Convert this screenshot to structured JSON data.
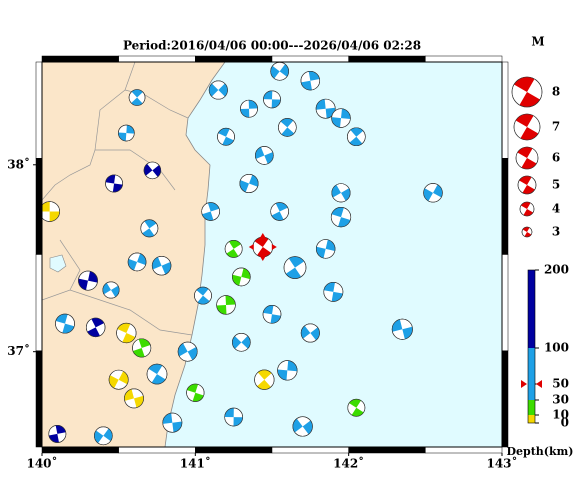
{
  "title": "Period:2016/04/06 00:00---2026/04/06 02:28",
  "xlim": [
    140,
    143
  ],
  "ylim": [
    36.49,
    38.55
  ],
  "xticks": [
    {
      "value": 140,
      "label": "140˚"
    },
    {
      "value": 141,
      "label": "141˚"
    },
    {
      "value": 142,
      "label": "142˚"
    },
    {
      "value": 143,
      "label": "143˚"
    }
  ],
  "yticks": [
    {
      "value": 37,
      "label": "37˚"
    },
    {
      "value": 38,
      "label": "38˚"
    }
  ],
  "magnitude_legend": {
    "title": "M",
    "mags": [
      8,
      7,
      6,
      5,
      4,
      3
    ]
  },
  "depth_scale": {
    "title": "Depth(km)",
    "ticks": [
      200,
      100,
      50,
      30,
      10,
      0
    ]
  },
  "latest": {
    "lon": 141.44,
    "lat": 37.56,
    "depth": 50,
    "mag": 5.5
  },
  "events": [
    {
      "lon": 140.05,
      "lat": 37.75,
      "depth": 8,
      "mag": 5.5
    },
    {
      "lon": 140.62,
      "lat": 38.36,
      "depth": 60,
      "mag": 4.5
    },
    {
      "lon": 140.55,
      "lat": 38.17,
      "depth": 60,
      "mag": 4.5
    },
    {
      "lon": 140.72,
      "lat": 37.97,
      "depth": 120,
      "mag": 4.7
    },
    {
      "lon": 140.47,
      "lat": 37.9,
      "depth": 110,
      "mag": 4.8
    },
    {
      "lon": 140.7,
      "lat": 37.66,
      "depth": 70,
      "mag": 4.8
    },
    {
      "lon": 140.3,
      "lat": 37.38,
      "depth": 150,
      "mag": 5.3
    },
    {
      "lon": 140.45,
      "lat": 37.33,
      "depth": 80,
      "mag": 4.6
    },
    {
      "lon": 140.15,
      "lat": 37.15,
      "depth": 40,
      "mag": 5.3
    },
    {
      "lon": 140.35,
      "lat": 37.13,
      "depth": 110,
      "mag": 5.2
    },
    {
      "lon": 140.62,
      "lat": 37.48,
      "depth": 60,
      "mag": 5.0
    },
    {
      "lon": 140.78,
      "lat": 37.46,
      "depth": 60,
      "mag": 5.2
    },
    {
      "lon": 140.55,
      "lat": 37.1,
      "depth": 8,
      "mag": 5.4
    },
    {
      "lon": 140.65,
      "lat": 37.02,
      "depth": 20,
      "mag": 5.1
    },
    {
      "lon": 140.5,
      "lat": 36.85,
      "depth": 5,
      "mag": 5.3
    },
    {
      "lon": 140.6,
      "lat": 36.75,
      "depth": 8,
      "mag": 5.3
    },
    {
      "lon": 140.75,
      "lat": 36.88,
      "depth": 40,
      "mag": 5.5
    },
    {
      "lon": 140.1,
      "lat": 36.56,
      "depth": 110,
      "mag": 4.8
    },
    {
      "lon": 140.4,
      "lat": 36.55,
      "depth": 90,
      "mag": 5.0
    },
    {
      "lon": 140.85,
      "lat": 36.62,
      "depth": 60,
      "mag": 5.3
    },
    {
      "lon": 141.05,
      "lat": 37.3,
      "depth": 60,
      "mag": 4.8
    },
    {
      "lon": 141.2,
      "lat": 37.25,
      "depth": 20,
      "mag": 5.2
    },
    {
      "lon": 141.3,
      "lat": 37.05,
      "depth": 45,
      "mag": 5.0
    },
    {
      "lon": 141.25,
      "lat": 36.65,
      "depth": 80,
      "mag": 5.0
    },
    {
      "lon": 141.45,
      "lat": 36.85,
      "depth": 8,
      "mag": 5.4
    },
    {
      "lon": 141.6,
      "lat": 36.9,
      "depth": 60,
      "mag": 5.4
    },
    {
      "lon": 141.75,
      "lat": 37.1,
      "depth": 60,
      "mag": 5.1
    },
    {
      "lon": 141.5,
      "lat": 37.2,
      "depth": 60,
      "mag": 5.0
    },
    {
      "lon": 141.65,
      "lat": 37.45,
      "depth": 40,
      "mag": 6.0
    },
    {
      "lon": 141.85,
      "lat": 37.55,
      "depth": 50,
      "mag": 5.2
    },
    {
      "lon": 141.95,
      "lat": 37.85,
      "depth": 40,
      "mag": 5.1
    },
    {
      "lon": 141.95,
      "lat": 37.72,
      "depth": 50,
      "mag": 5.4
    },
    {
      "lon": 141.55,
      "lat": 37.75,
      "depth": 60,
      "mag": 5.0
    },
    {
      "lon": 141.35,
      "lat": 37.9,
      "depth": 60,
      "mag": 5.1
    },
    {
      "lon": 141.45,
      "lat": 38.05,
      "depth": 60,
      "mag": 5.0
    },
    {
      "lon": 141.2,
      "lat": 38.15,
      "depth": 50,
      "mag": 4.8
    },
    {
      "lon": 141.1,
      "lat": 37.75,
      "depth": 60,
      "mag": 5.0
    },
    {
      "lon": 142.55,
      "lat": 37.85,
      "depth": 35,
      "mag": 5.2
    },
    {
      "lon": 142.35,
      "lat": 37.12,
      "depth": 40,
      "mag": 5.6
    },
    {
      "lon": 142.05,
      "lat": 36.7,
      "depth": 20,
      "mag": 4.8
    },
    {
      "lon": 141.75,
      "lat": 38.45,
      "depth": 60,
      "mag": 5.2
    },
    {
      "lon": 141.55,
      "lat": 38.5,
      "depth": 60,
      "mag": 5.0
    },
    {
      "lon": 141.85,
      "lat": 38.3,
      "depth": 60,
      "mag": 5.3
    },
    {
      "lon": 141.6,
      "lat": 38.2,
      "depth": 60,
      "mag": 5.0
    },
    {
      "lon": 141.35,
      "lat": 38.3,
      "depth": 60,
      "mag": 4.8
    },
    {
      "lon": 141.15,
      "lat": 38.4,
      "depth": 60,
      "mag": 5.1
    },
    {
      "lon": 141.5,
      "lat": 38.35,
      "depth": 60,
      "mag": 4.8
    },
    {
      "lon": 142.05,
      "lat": 38.15,
      "depth": 60,
      "mag": 5.0
    },
    {
      "lon": 141.95,
      "lat": 38.25,
      "depth": 60,
      "mag": 5.2
    },
    {
      "lon": 141.7,
      "lat": 36.6,
      "depth": 50,
      "mag": 5.4
    },
    {
      "lon": 141.9,
      "lat": 37.32,
      "depth": 40,
      "mag": 5.3
    },
    {
      "lon": 141.25,
      "lat": 37.55,
      "depth": 20,
      "mag": 4.8
    },
    {
      "lon": 141.3,
      "lat": 37.4,
      "depth": 15,
      "mag": 5.0
    },
    {
      "lon": 140.95,
      "lat": 37.0,
      "depth": 60,
      "mag": 5.3
    },
    {
      "lon": 141.0,
      "lat": 36.78,
      "depth": 20,
      "mag": 4.9
    }
  ]
}
